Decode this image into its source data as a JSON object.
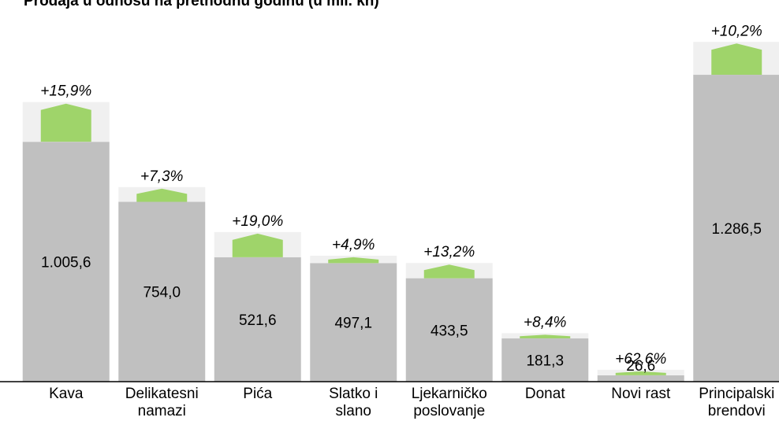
{
  "chart_data": {
    "type": "bar",
    "title": "Prodaja u odnosu na prethodnu godinu (u mil. kn)",
    "categories": [
      "Kava",
      "Delikatesni\nnamazi",
      "Pića",
      "Slatko i\nslano",
      "Ljekarničko\nposlovanje",
      "Donat",
      "Novi rast",
      "Principalski\nbrendovi"
    ],
    "values": [
      1005.6,
      754.0,
      521.6,
      497.1,
      433.5,
      181.3,
      26.6,
      1286.5
    ],
    "value_labels": [
      "1.005,6",
      "754,0",
      "521,6",
      "497,1",
      "433,5",
      "181,3",
      "26,6",
      "1.286,5"
    ],
    "growth": [
      15.9,
      7.3,
      19.0,
      4.9,
      13.2,
      8.4,
      62.6,
      10.2
    ],
    "growth_labels": [
      "+15,9%",
      "+7,3%",
      "+19,0%",
      "+4,9%",
      "+13,2%",
      "+8,4%",
      "+62,6%",
      "+10,2%"
    ],
    "color": "#c0c0c0",
    "growth_color": "#9fd46a",
    "ylim": [
      0,
      1600
    ]
  }
}
